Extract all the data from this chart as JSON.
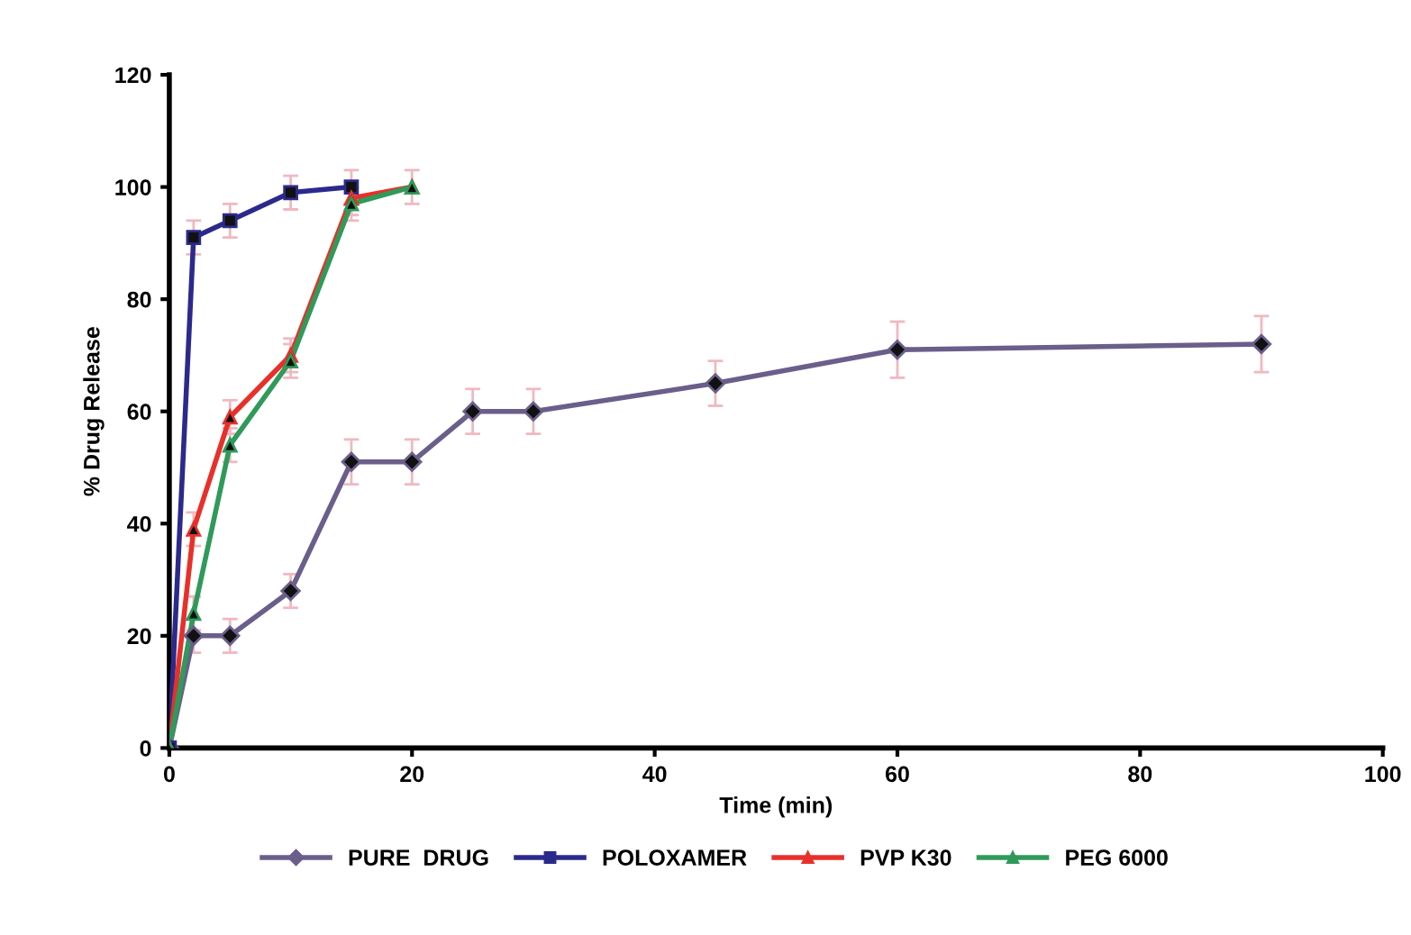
{
  "chart_data": {
    "type": "line",
    "xlabel": "Time (min)",
    "ylabel": "% Drug Release",
    "xlim": [
      0,
      100
    ],
    "xticks": [
      0,
      20,
      40,
      60,
      80,
      100
    ],
    "ylim": [
      0,
      120
    ],
    "yticks": [
      0,
      20,
      40,
      60,
      80,
      100,
      120
    ],
    "grid": false,
    "legend": "bottom",
    "line_style": "solid",
    "series": [
      {
        "name": "PURE  DRUG",
        "color": "#6a5f8a",
        "marker": "diamond",
        "x": [
          0,
          2,
          5,
          10,
          15,
          20,
          25,
          30,
          45,
          60,
          90
        ],
        "values": [
          0,
          20,
          20,
          28,
          51,
          51,
          60,
          60,
          65,
          71,
          72
        ],
        "errors": [
          null,
          3,
          3,
          3,
          4,
          4,
          4,
          4,
          4,
          5,
          5
        ]
      },
      {
        "name": "POLOXAMER",
        "color": "#2b2a8c",
        "marker": "square",
        "x": [
          0,
          2,
          5,
          10,
          15
        ],
        "values": [
          0,
          91,
          94,
          99,
          100
        ],
        "errors": [
          null,
          3,
          3,
          3,
          3
        ]
      },
      {
        "name": "PVP K30",
        "color": "#e8302a",
        "marker": "triangle",
        "x": [
          0,
          2,
          5,
          10,
          15,
          20
        ],
        "values": [
          0,
          39,
          59,
          70,
          98,
          100
        ],
        "errors": [
          null,
          3,
          3,
          3,
          3,
          null
        ]
      },
      {
        "name": "PEG 6000",
        "color": "#2f9a5a",
        "marker": "triangle",
        "x": [
          0,
          2,
          5,
          10,
          15,
          20
        ],
        "values": [
          0,
          24,
          54,
          69,
          97,
          100
        ],
        "errors": [
          null,
          3,
          3,
          3,
          3,
          3
        ]
      }
    ]
  }
}
